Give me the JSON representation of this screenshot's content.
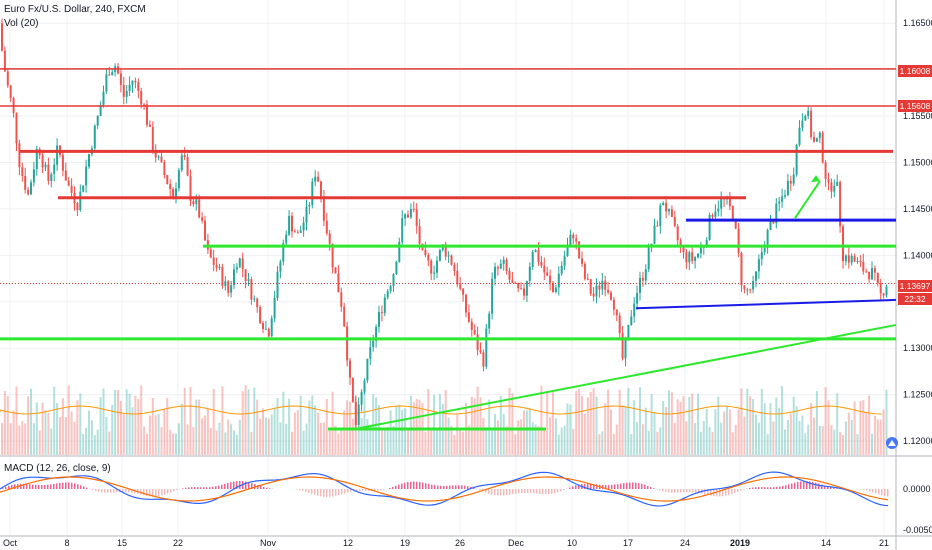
{
  "header": {
    "title": "Euro Fx/U.S. Dollar, 240, FXCM",
    "volume_label": "Vol (20)",
    "macd_label": "MACD (12, 26, close, 9)"
  },
  "colors": {
    "up": "#26a69a",
    "down": "#ef5350",
    "resistance": "#e53935",
    "support_green": "#2ee82e",
    "support_blue": "#1a1ae6",
    "macd_line": "#2962ff",
    "signal_line": "#ff6d00",
    "grid": "#eef0f3"
  },
  "chart_data": {
    "type": "candlestick",
    "symbol": "Euro Fx/U.S. Dollar",
    "timeframe": "240",
    "source": "FXCM",
    "x_axis": {
      "ticks": [
        "Oct",
        "8",
        "15",
        "22",
        "Nov",
        "12",
        "19",
        "26",
        "Dec",
        "10",
        "17",
        "24",
        "2019",
        "14",
        "21"
      ]
    },
    "y_axis": {
      "range": [
        1.1185,
        1.1675
      ],
      "ticks": [
        "1.16500",
        "1.16000",
        "1.15500",
        "1.15000",
        "1.14500",
        "1.14000",
        "1.13500",
        "1.13000",
        "1.12500",
        "1.12000"
      ]
    },
    "price_path": [
      [
        0,
        1.165
      ],
      [
        8,
        1.159
      ],
      [
        15,
        1.1555
      ],
      [
        22,
        1.1495
      ],
      [
        30,
        1.1465
      ],
      [
        40,
        1.152
      ],
      [
        50,
        1.148
      ],
      [
        60,
        1.1515
      ],
      [
        70,
        1.1475
      ],
      [
        80,
        1.1455
      ],
      [
        90,
        1.1505
      ],
      [
        100,
        1.155
      ],
      [
        110,
        1.16
      ],
      [
        118,
        1.1605
      ],
      [
        125,
        1.157
      ],
      [
        135,
        1.159
      ],
      [
        145,
        1.1565
      ],
      [
        155,
        1.1515
      ],
      [
        165,
        1.149
      ],
      [
        175,
        1.1465
      ],
      [
        185,
        1.151
      ],
      [
        192,
        1.1465
      ],
      [
        200,
        1.145
      ],
      [
        210,
        1.14
      ],
      [
        220,
        1.1385
      ],
      [
        230,
        1.136
      ],
      [
        240,
        1.14
      ],
      [
        250,
        1.137
      ],
      [
        260,
        1.134
      ],
      [
        270,
        1.1315
      ],
      [
        280,
        1.138
      ],
      [
        290,
        1.144
      ],
      [
        300,
        1.142
      ],
      [
        310,
        1.145
      ],
      [
        318,
        1.1495
      ],
      [
        325,
        1.145
      ],
      [
        335,
        1.139
      ],
      [
        345,
        1.134
      ],
      [
        352,
        1.126
      ],
      [
        358,
        1.1215
      ],
      [
        365,
        1.126
      ],
      [
        375,
        1.131
      ],
      [
        385,
        1.135
      ],
      [
        395,
        1.138
      ],
      [
        405,
        1.144
      ],
      [
        415,
        1.145
      ],
      [
        425,
        1.1395
      ],
      [
        435,
        1.1385
      ],
      [
        445,
        1.141
      ],
      [
        455,
        1.139
      ],
      [
        465,
        1.135
      ],
      [
        475,
        1.1315
      ],
      [
        485,
        1.1285
      ],
      [
        495,
        1.138
      ],
      [
        505,
        1.139
      ],
      [
        515,
        1.1365
      ],
      [
        525,
        1.1355
      ],
      [
        535,
        1.141
      ],
      [
        545,
        1.1385
      ],
      [
        555,
        1.136
      ],
      [
        565,
        1.1395
      ],
      [
        575,
        1.1425
      ],
      [
        585,
        1.138
      ],
      [
        595,
        1.1355
      ],
      [
        605,
        1.1375
      ],
      [
        615,
        1.1355
      ],
      [
        625,
        1.1285
      ],
      [
        635,
        1.135
      ],
      [
        645,
        1.138
      ],
      [
        655,
        1.142
      ],
      [
        665,
        1.146
      ],
      [
        675,
        1.143
      ],
      [
        685,
        1.14
      ],
      [
        695,
        1.1395
      ],
      [
        705,
        1.141
      ],
      [
        715,
        1.145
      ],
      [
        725,
        1.146
      ],
      [
        735,
        1.1445
      ],
      [
        745,
        1.136
      ],
      [
        755,
        1.1365
      ],
      [
        765,
        1.141
      ],
      [
        775,
        1.144
      ],
      [
        785,
        1.1465
      ],
      [
        795,
        1.149
      ],
      [
        802,
        1.1545
      ],
      [
        808,
        1.156
      ],
      [
        815,
        1.152
      ],
      [
        822,
        1.1525
      ],
      [
        830,
        1.147
      ],
      [
        838,
        1.1485
      ],
      [
        845,
        1.14
      ],
      [
        855,
        1.1395
      ],
      [
        865,
        1.1385
      ],
      [
        875,
        1.138
      ],
      [
        882,
        1.1355
      ],
      [
        888,
        1.137
      ]
    ],
    "horizontal_levels": [
      {
        "price": 1.16008,
        "color": "resistance",
        "label": "1.16008",
        "x_start": 0
      },
      {
        "price": 1.15608,
        "color": "resistance",
        "label": "1.15608",
        "x_start": 0
      },
      {
        "price": 1.1512,
        "color": "resistance",
        "x_start": 20,
        "x_end": 893
      },
      {
        "price": 1.1462,
        "color": "resistance",
        "x_start": 58,
        "x_end": 746
      },
      {
        "price": 1.141,
        "color": "support_green",
        "x_start": 203,
        "x_end": 896
      },
      {
        "price": 1.1438,
        "color": "support_blue",
        "x_start": 686,
        "x_end": 896
      },
      {
        "price": 1.131,
        "color": "support_green",
        "x_start": 0,
        "x_end": 896
      },
      {
        "price": 1.1213,
        "color": "support_green",
        "x_start": 328,
        "x_end": 546
      }
    ],
    "trendlines": [
      {
        "from": [
          355,
          1.1213
        ],
        "to": [
          896,
          1.1325
        ],
        "color": "support_green"
      },
      {
        "from": [
          636,
          1.1343
        ],
        "to": [
          896,
          1.1352
        ],
        "color": "support_blue"
      }
    ],
    "arrow": {
      "from": [
        795,
        1.144
      ],
      "to": [
        820,
        1.148
      ],
      "color": "support_green"
    },
    "last_price": {
      "value": "1.13697",
      "countdown": "22:32"
    },
    "macd": {
      "params": "12, 26, close, 9",
      "ticks": [
        "0.0000",
        "-0.0050"
      ]
    }
  }
}
